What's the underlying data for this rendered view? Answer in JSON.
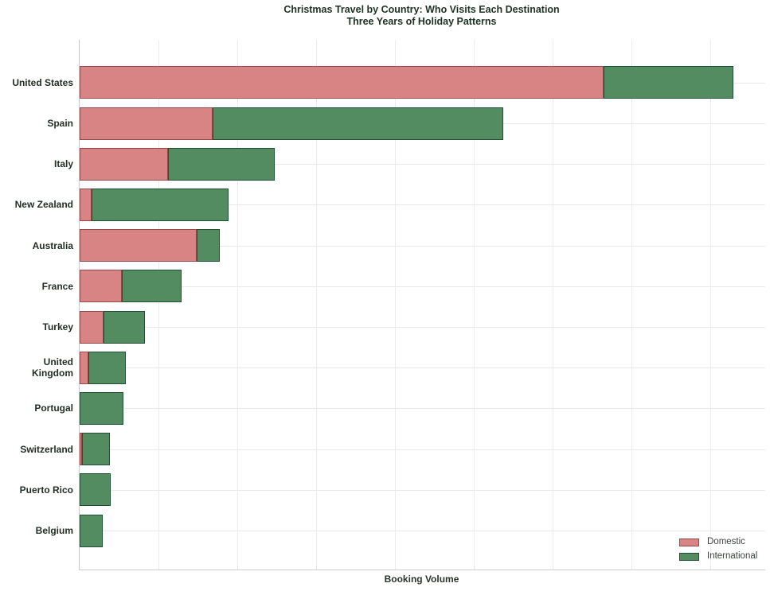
{
  "title": {
    "line1": "Christmas Travel by Country: Who Visits Each Destination",
    "line2": "Three Years of Holiday Patterns"
  },
  "axes": {
    "x_label": "Booking Volume",
    "x_tick_labels_visible": false,
    "y_labels": [
      "United States",
      "Spain",
      "Italy",
      "New Zealand",
      "Australia",
      "France",
      "Turkey",
      "United Kingdom",
      "Portugal",
      "Switzerland",
      "Puerto Rico",
      "Belgium"
    ]
  },
  "legend": {
    "position": "bottom-right",
    "items": [
      {
        "label": "Domestic",
        "fill": "#d98484",
        "border": "#94494a"
      },
      {
        "label": "International",
        "fill": "#548c62",
        "border": "#205034"
      }
    ]
  },
  "colors": {
    "background": "#ffffff",
    "domestic_fill": "#d98484",
    "domestic_border": "#94494a",
    "international_fill": "#548c62",
    "international_border": "#205034",
    "gridline": "#ececec",
    "axis_line": "#c9cdc9",
    "title_text": "#1d3127",
    "label_text": "#232e27"
  },
  "chart_data": {
    "type": "bar",
    "orientation": "horizontal",
    "stacked": true,
    "title": "Christmas Travel by Country: Who Visits Each Destination",
    "subtitle": "Three Years of Holiday Patterns",
    "xlabel": "Booking Volume",
    "ylabel": "",
    "categories": [
      "United States",
      "Spain",
      "Italy",
      "New Zealand",
      "Australia",
      "France",
      "Turkey",
      "United Kingdom",
      "Portugal",
      "Switzerland",
      "Puerto Rico",
      "Belgium"
    ],
    "series": [
      {
        "name": "Domestic",
        "color": "#d98484",
        "values": [
          6.65,
          1.69,
          1.12,
          0.15,
          1.48,
          0.54,
          0.3,
          0.11,
          0.0,
          0.03,
          0.0,
          0.0
        ]
      },
      {
        "name": "International",
        "color": "#548c62",
        "values": [
          1.64,
          3.68,
          1.35,
          1.74,
          0.3,
          0.75,
          0.53,
          0.48,
          0.56,
          0.35,
          0.39,
          0.29
        ]
      }
    ],
    "value_units": "relative gridline units (x tick labels not shown; 1 unit = one gridline interval)",
    "xlim": [
      0,
      8.7
    ],
    "gridline_interval": 1,
    "grid": true,
    "legend_position": "bottom-right"
  }
}
